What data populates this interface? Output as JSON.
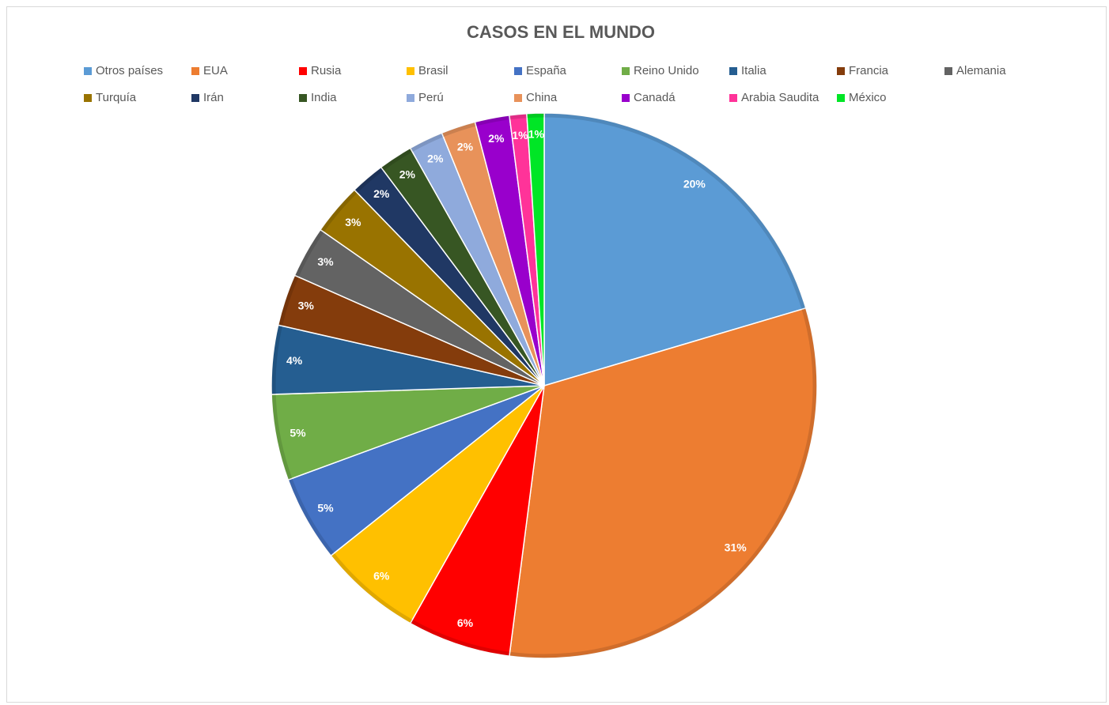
{
  "chart_data": {
    "type": "pie",
    "title": "CASOS EN EL MUNDO",
    "categories": [
      "Otros países",
      "EUA",
      "Rusia",
      "Brasil",
      "España",
      "Reino Unido",
      "Italia",
      "Francia",
      "Alemania",
      "Turquía",
      "Irán",
      "India",
      "Perú",
      "China",
      "Canadá",
      "Arabia Saudita",
      "México"
    ],
    "values": [
      20,
      31,
      6,
      6,
      5,
      5,
      4,
      3,
      3,
      3,
      2,
      2,
      2,
      2,
      2,
      1,
      1
    ],
    "value_labels": [
      "20%",
      "31%",
      "6%",
      "6%",
      "5%",
      "5%",
      "4%",
      "3%",
      "3%",
      "3%",
      "2%",
      "2%",
      "2%",
      "2%",
      "2%",
      "1%",
      "1%"
    ],
    "colors": [
      "#5b9bd5",
      "#ed7d31",
      "#ff0000",
      "#ffc000",
      "#4472c4",
      "#70ad47",
      "#255e91",
      "#843c0c",
      "#636363",
      "#997300",
      "#203864",
      "#375623",
      "#8faadc",
      "#e8925a",
      "#9900cc",
      "#ff3399",
      "#00e626"
    ],
    "legend": "top"
  }
}
